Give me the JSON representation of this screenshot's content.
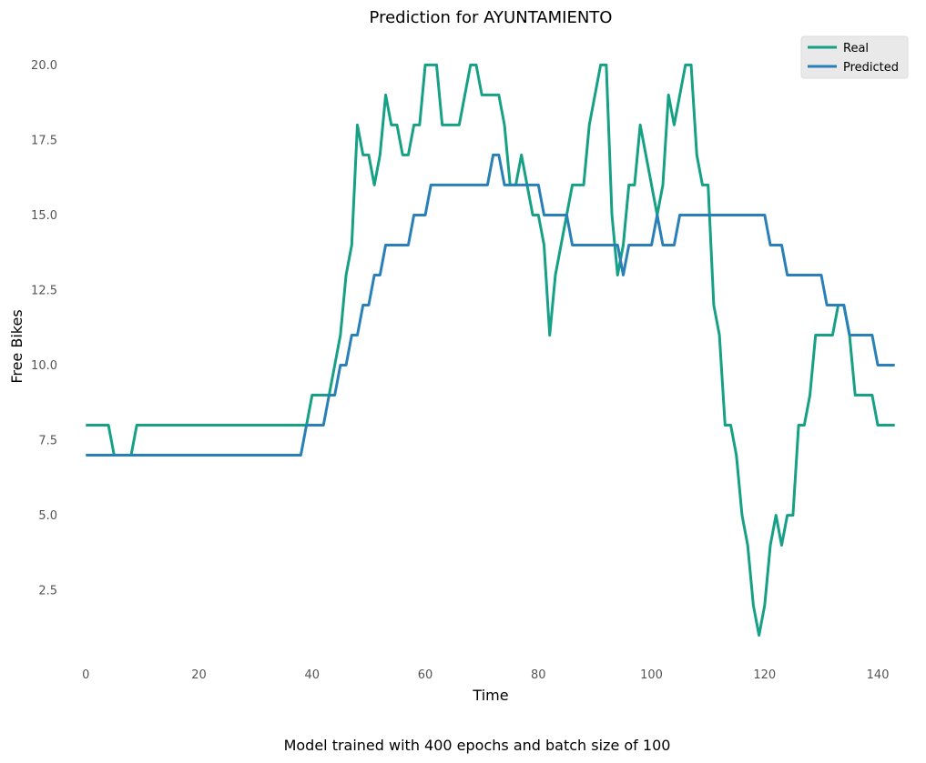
{
  "chart_data": {
    "type": "line",
    "title": "Prediction for AYUNTAMIENTO",
    "xlabel": "Time",
    "ylabel": "Free Bikes",
    "xlim": [
      -2.3,
      145.3
    ],
    "ylim": [
      0.05,
      20.95
    ],
    "xticks": [
      0,
      20,
      40,
      60,
      80,
      100,
      120,
      140
    ],
    "xtick_labels": [
      "0",
      "20",
      "40",
      "60",
      "80",
      "100",
      "120",
      "140"
    ],
    "yticks": [
      2.5,
      5.0,
      7.5,
      10.0,
      12.5,
      15.0,
      17.5,
      20.0
    ],
    "ytick_labels": [
      "2.5",
      "5.0",
      "7.5",
      "10.0",
      "12.5",
      "15.0",
      "17.5",
      "20.0"
    ],
    "grid": false,
    "legend_position": "top-right",
    "series": [
      {
        "name": "Real",
        "color": "#16a085",
        "points": [
          [
            0,
            8
          ],
          [
            4,
            8
          ],
          [
            5,
            7
          ],
          [
            8,
            7
          ],
          [
            9,
            8
          ],
          [
            39,
            8
          ],
          [
            40,
            9
          ],
          [
            43,
            9
          ],
          [
            44,
            10
          ],
          [
            45,
            11
          ],
          [
            46,
            13
          ],
          [
            47,
            14
          ],
          [
            48,
            18
          ],
          [
            49,
            17
          ],
          [
            50,
            17
          ],
          [
            51,
            16
          ],
          [
            52,
            17
          ],
          [
            53,
            19
          ],
          [
            54,
            18
          ],
          [
            55,
            18
          ],
          [
            56,
            17
          ],
          [
            57,
            17
          ],
          [
            58,
            18
          ],
          [
            59,
            18
          ],
          [
            60,
            20
          ],
          [
            62,
            20
          ],
          [
            63,
            18
          ],
          [
            66,
            18
          ],
          [
            68,
            20
          ],
          [
            69,
            20
          ],
          [
            70,
            19
          ],
          [
            73,
            19
          ],
          [
            74,
            18
          ],
          [
            75,
            16
          ],
          [
            76,
            16
          ],
          [
            77,
            17
          ],
          [
            78,
            16
          ],
          [
            79,
            15
          ],
          [
            80,
            15
          ],
          [
            81,
            14
          ],
          [
            82,
            11
          ],
          [
            83,
            13
          ],
          [
            84,
            14
          ],
          [
            86,
            16
          ],
          [
            88,
            16
          ],
          [
            89,
            18
          ],
          [
            91,
            20
          ],
          [
            92,
            20
          ],
          [
            93,
            15
          ],
          [
            94,
            13
          ],
          [
            95,
            14
          ],
          [
            96,
            16
          ],
          [
            97,
            16
          ],
          [
            98,
            18
          ],
          [
            101,
            15
          ],
          [
            102,
            16
          ],
          [
            103,
            19
          ],
          [
            104,
            18
          ],
          [
            105,
            19
          ],
          [
            106,
            20
          ],
          [
            107,
            20
          ],
          [
            108,
            17
          ],
          [
            109,
            16
          ],
          [
            110,
            16
          ],
          [
            111,
            12
          ],
          [
            112,
            11
          ],
          [
            113,
            8
          ],
          [
            114,
            8
          ],
          [
            115,
            7
          ],
          [
            116,
            5
          ],
          [
            117,
            4
          ],
          [
            118,
            2
          ],
          [
            119,
            1
          ],
          [
            120,
            2
          ],
          [
            121,
            4
          ],
          [
            122,
            5
          ],
          [
            123,
            4
          ],
          [
            124,
            5
          ],
          [
            125,
            5
          ],
          [
            126,
            8
          ],
          [
            127,
            8
          ],
          [
            128,
            9
          ],
          [
            129,
            11
          ],
          [
            132,
            11
          ],
          [
            133,
            12
          ],
          [
            134,
            12
          ],
          [
            135,
            11
          ],
          [
            136,
            9
          ],
          [
            139,
            9
          ],
          [
            140,
            8
          ],
          [
            143,
            8
          ]
        ]
      },
      {
        "name": "Predicted",
        "color": "#2980b9",
        "points": [
          [
            0,
            7
          ],
          [
            38,
            7
          ],
          [
            39,
            8
          ],
          [
            42,
            8
          ],
          [
            43,
            9
          ],
          [
            44,
            9
          ],
          [
            45,
            10
          ],
          [
            46,
            10
          ],
          [
            47,
            11
          ],
          [
            48,
            11
          ],
          [
            49,
            12
          ],
          [
            50,
            12
          ],
          [
            51,
            13
          ],
          [
            52,
            13
          ],
          [
            53,
            14
          ],
          [
            57,
            14
          ],
          [
            58,
            15
          ],
          [
            60,
            15
          ],
          [
            61,
            16
          ],
          [
            71,
            16
          ],
          [
            72,
            17
          ],
          [
            73,
            17
          ],
          [
            74,
            16
          ],
          [
            80,
            16
          ],
          [
            81,
            15
          ],
          [
            85,
            15
          ],
          [
            86,
            14
          ],
          [
            94,
            14
          ],
          [
            95,
            13
          ],
          [
            96,
            14
          ],
          [
            100,
            14
          ],
          [
            101,
            15
          ],
          [
            102,
            14
          ],
          [
            104,
            14
          ],
          [
            105,
            15
          ],
          [
            120,
            15
          ],
          [
            121,
            14
          ],
          [
            123,
            14
          ],
          [
            124,
            13
          ],
          [
            130,
            13
          ],
          [
            131,
            12
          ],
          [
            134,
            12
          ],
          [
            135,
            11
          ],
          [
            139,
            11
          ],
          [
            140,
            10
          ],
          [
            143,
            10
          ]
        ]
      }
    ]
  },
  "caption": "Model trained with 400 epochs and batch size of 100"
}
